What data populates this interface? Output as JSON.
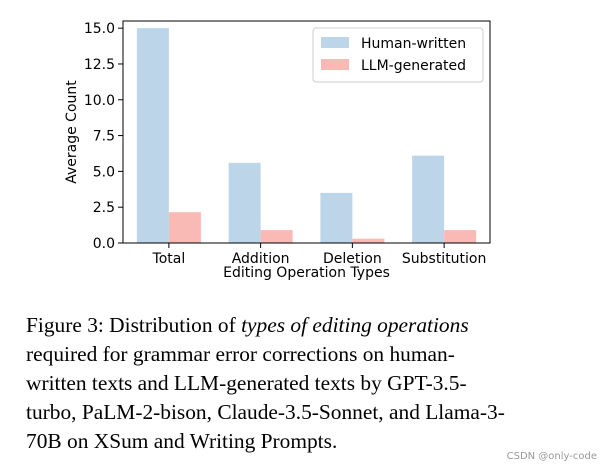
{
  "chart_data": {
    "type": "bar",
    "categories": [
      "Total",
      "Addition",
      "Deletion",
      "Substitution"
    ],
    "series": [
      {
        "name": "Human-written",
        "values": [
          15.0,
          5.6,
          3.5,
          6.1
        ],
        "color": "#bdd5e8"
      },
      {
        "name": "LLM-generated",
        "values": [
          2.15,
          0.9,
          0.3,
          0.9
        ],
        "color": "#f9b9b5"
      }
    ],
    "ylabel": "Average Count",
    "xlabel": "Editing Operation Types",
    "ylim": [
      0,
      15.5
    ],
    "yticks": [
      "0.0",
      "2.5",
      "5.0",
      "7.5",
      "10.0",
      "12.5",
      "15.0"
    ],
    "ytick_values": [
      0,
      2.5,
      5.0,
      7.5,
      10.0,
      12.5,
      15.0
    ],
    "grid": false,
    "legend_placement": "top-right"
  },
  "caption": {
    "lines": [
      {
        "prefix": "Figure 3: Distribution of ",
        "em": "types of editing operations",
        "suffix": ""
      },
      {
        "prefix": "required for grammar error corrections on human-",
        "em": "",
        "suffix": ""
      },
      {
        "prefix": "written texts and LLM-generated texts by GPT-3.5-",
        "em": "",
        "suffix": ""
      },
      {
        "prefix": "turbo, PaLM-2-bison, Claude-3.5-Sonnet, and Llama-3-",
        "em": "",
        "suffix": ""
      },
      {
        "prefix": "70B on XSum and Writing Prompts.",
        "em": "",
        "suffix": ""
      }
    ]
  },
  "watermark": "CSDN @only-code"
}
